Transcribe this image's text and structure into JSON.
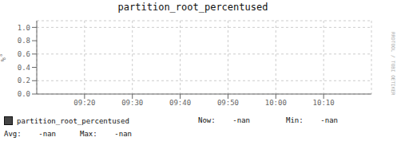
{
  "chart_data": {
    "type": "line",
    "title": "partition_root_percentused",
    "ylabel": "%°",
    "x": [],
    "series": [
      {
        "name": "partition_root_percentused",
        "color": "#444444",
        "values": []
      }
    ],
    "xlim": [
      0,
      7
    ],
    "xticks": [
      {
        "value": 1,
        "label": "09:20"
      },
      {
        "value": 2,
        "label": "09:30"
      },
      {
        "value": 3,
        "label": "09:40"
      },
      {
        "value": 4,
        "label": "09:50"
      },
      {
        "value": 5,
        "label": "10:00"
      },
      {
        "value": 6,
        "label": "10:10"
      }
    ],
    "ylim": [
      0.0,
      1.1
    ],
    "yticks": [
      {
        "value": 0.0,
        "label": "0.0"
      },
      0.2,
      0.4,
      0.6,
      0.8,
      {
        "value": 1.0,
        "label": "1.0"
      }
    ],
    "grid": true,
    "annotations": [
      "Now:    -nan",
      "Min:    -nan",
      "Avg:    -nan",
      "Max:    -nan",
      "RRDTOOL / TOBI OETIKER"
    ]
  }
}
